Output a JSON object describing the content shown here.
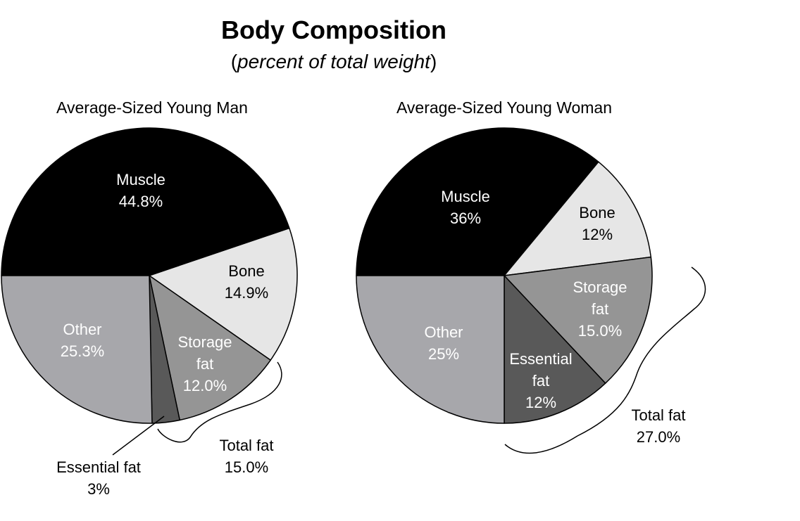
{
  "title": "Body Composition",
  "subtitle_open": "(",
  "subtitle_italic": "percent of total weight",
  "subtitle_close": ")",
  "chart_data": [
    {
      "type": "pie",
      "title": "Average-Sized Young Man",
      "slices": [
        {
          "name": "Muscle",
          "label": "Muscle",
          "value_label": "44.8%",
          "value": 44.8,
          "color": "#000000",
          "text_color": "#ffffff"
        },
        {
          "name": "Bone",
          "label": "Bone",
          "value_label": "14.9%",
          "value": 14.9,
          "color": "#e6e6e6",
          "text_color": "#000000"
        },
        {
          "name": "Storage fat",
          "label": "Storage fat",
          "value_label": "12.0%",
          "value": 12.0,
          "color": "#959595",
          "text_color": "#ffffff"
        },
        {
          "name": "Essential fat",
          "label": "Essential fat",
          "value_label": "3%",
          "value": 3,
          "color": "#595959",
          "text_color": "#ffffff"
        },
        {
          "name": "Other",
          "label": "Other",
          "value_label": "25.3%",
          "value": 25.3,
          "color": "#a7a7ab",
          "text_color": "#ffffff"
        }
      ],
      "total_fat": {
        "label": "Total fat",
        "value_label": "15.0%",
        "value": 15.0
      }
    },
    {
      "type": "pie",
      "title": "Average-Sized Young Woman",
      "slices": [
        {
          "name": "Muscle",
          "label": "Muscle",
          "value_label": "36%",
          "value": 36,
          "color": "#000000",
          "text_color": "#ffffff"
        },
        {
          "name": "Bone",
          "label": "Bone",
          "value_label": "12%",
          "value": 12,
          "color": "#e6e6e6",
          "text_color": "#000000"
        },
        {
          "name": "Storage fat",
          "label": "Storage fat",
          "value_label": "15.0%",
          "value": 15.0,
          "color": "#959595",
          "text_color": "#ffffff"
        },
        {
          "name": "Essential fat",
          "label": "Essential fat",
          "value_label": "12%",
          "value": 12,
          "color": "#595959",
          "text_color": "#ffffff"
        },
        {
          "name": "Other",
          "label": "Other",
          "value_label": "25%",
          "value": 25,
          "color": "#a7a7ab",
          "text_color": "#ffffff"
        }
      ],
      "total_fat": {
        "label": "Total fat",
        "value_label": "27.0%",
        "value": 27.0
      }
    }
  ]
}
